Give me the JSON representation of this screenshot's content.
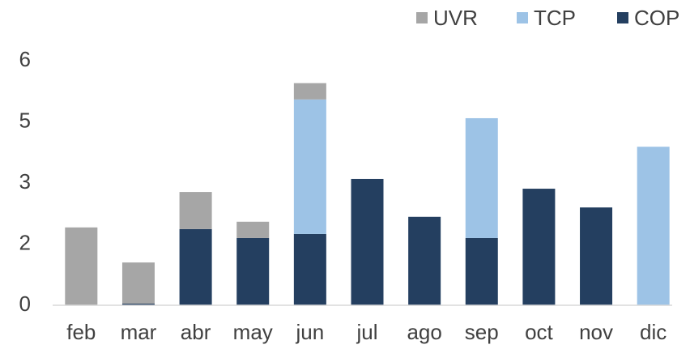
{
  "chart_data": {
    "type": "stacked_bar",
    "categories": [
      "feb",
      "mar",
      "abr",
      "may",
      "jun",
      "jul",
      "ago",
      "sep",
      "oct",
      "nov",
      "dic"
    ],
    "series": [
      {
        "name": "UVR",
        "color": "#a6a6a6",
        "values": [
          1.91,
          1.01,
          0.91,
          0.4,
          0.4,
          0,
          0,
          0,
          0,
          0,
          0
        ]
      },
      {
        "name": "TCP",
        "color": "#9dc3e6",
        "values": [
          0,
          0,
          0,
          0,
          3.3,
          0,
          0,
          2.94,
          0,
          0,
          3.89
        ]
      },
      {
        "name": "COP",
        "color": "#243f60",
        "values": [
          0,
          0.04,
          1.87,
          1.65,
          1.75,
          3.1,
          2.17,
          1.65,
          2.86,
          2.4,
          0
        ]
      }
    ],
    "ylim": [
      0,
      6
    ],
    "yticks": [
      0,
      {
        "value": 1.5,
        "label": "2"
      },
      3,
      {
        "value": 4.5,
        "label": "5"
      },
      6
    ],
    "grid": false,
    "legend": "top-right"
  }
}
